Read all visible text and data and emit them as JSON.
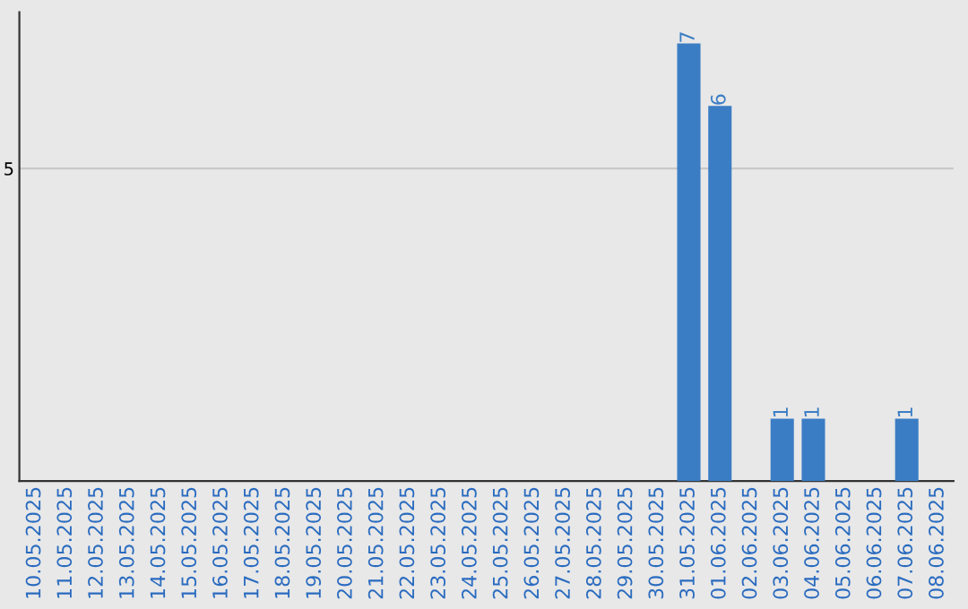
{
  "chart_data": {
    "type": "bar",
    "categories": [
      "10.05.2025",
      "11.05.2025",
      "12.05.2025",
      "13.05.2025",
      "14.05.2025",
      "15.05.2025",
      "16.05.2025",
      "17.05.2025",
      "18.05.2025",
      "19.05.2025",
      "20.05.2025",
      "21.05.2025",
      "22.05.2025",
      "23.05.2025",
      "24.05.2025",
      "25.05.2025",
      "26.05.2025",
      "27.05.2025",
      "28.05.2025",
      "29.05.2025",
      "30.05.2025",
      "31.05.2025",
      "01.06.2025",
      "02.06.2025",
      "03.06.2025",
      "04.06.2025",
      "05.06.2025",
      "06.06.2025",
      "07.06.2025",
      "08.06.2025"
    ],
    "values": [
      null,
      null,
      null,
      null,
      null,
      null,
      null,
      null,
      null,
      null,
      null,
      null,
      null,
      null,
      null,
      null,
      null,
      null,
      null,
      null,
      null,
      7,
      6,
      null,
      1,
      1,
      null,
      null,
      1,
      null
    ],
    "value_labels": [
      null,
      null,
      null,
      null,
      null,
      null,
      null,
      null,
      null,
      null,
      null,
      null,
      null,
      null,
      null,
      null,
      null,
      null,
      null,
      null,
      null,
      "7",
      "6",
      null,
      "1",
      "1",
      null,
      null,
      "1",
      null
    ],
    "color": "#3b7dc4",
    "ylim": [
      0,
      7.5
    ],
    "yticks": [
      5
    ],
    "grid": "y",
    "legend": false
  }
}
